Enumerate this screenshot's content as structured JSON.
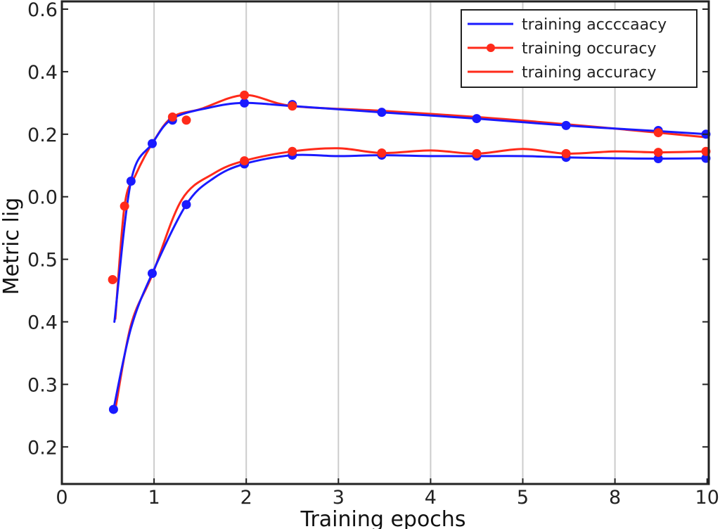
{
  "chart_data": {
    "type": "line",
    "title": "",
    "xlabel": "Training epochs",
    "ylabel": "Metric lig",
    "x_tick_labels": [
      "0",
      "1",
      "2",
      "3",
      "4",
      "5",
      "8",
      "10"
    ],
    "y_tick_labels": [
      "0.6",
      "0.4",
      "0.2",
      "0.0",
      "0.5",
      "0.4",
      "0.3",
      "0.2"
    ],
    "x_scale_note": "x values are positions in tick-index units (0..7)",
    "y_scale_note": "y values are on a linear scale where the ticks top-to-bottom sit at 0.6, 0.4, 0.2, 0.0, -0.2, -0.4, -0.6, -0.8",
    "xlim": [
      0,
      7
    ],
    "ylim": [
      -0.95,
      0.63
    ],
    "grid": {
      "vertical": true,
      "horizontal": false
    },
    "legend_position": "upper right",
    "legend": [
      {
        "label": "training accccaacy",
        "color": "#1a1aff",
        "marker": false
      },
      {
        "label": "training occuracy",
        "color": "#ff2a1a",
        "marker": true
      },
      {
        "label": "training accuracy",
        "color": "#ff2a1a",
        "marker": false
      }
    ],
    "series": [
      {
        "name": "upper-blue",
        "color": "#1a1aff",
        "points": [
          [
            0.57,
            -0.4
          ],
          [
            0.75,
            0.05
          ],
          [
            0.98,
            0.17
          ],
          [
            1.2,
            0.25
          ],
          [
            1.6,
            0.285
          ],
          [
            1.98,
            0.3
          ],
          [
            2.5,
            0.29
          ],
          [
            3.47,
            0.27
          ],
          [
            4.5,
            0.25
          ],
          [
            5.47,
            0.228
          ],
          [
            6.47,
            0.21
          ],
          [
            7.0,
            0.2
          ]
        ],
        "markers": [
          [
            0.75,
            0.05
          ],
          [
            0.98,
            0.17
          ],
          [
            1.2,
            0.245
          ],
          [
            1.98,
            0.3
          ],
          [
            2.5,
            0.295
          ],
          [
            3.47,
            0.27
          ],
          [
            4.5,
            0.25
          ],
          [
            5.47,
            0.228
          ],
          [
            6.47,
            0.212
          ],
          [
            7.0,
            0.2
          ]
        ]
      },
      {
        "name": "upper-red",
        "color": "#ff2a1a",
        "points": [
          [
            0.58,
            -0.39
          ],
          [
            0.68,
            -0.03
          ],
          [
            0.8,
            0.07
          ],
          [
            1.0,
            0.18
          ],
          [
            1.2,
            0.255
          ],
          [
            1.5,
            0.28
          ],
          [
            1.98,
            0.325
          ],
          [
            2.5,
            0.29
          ],
          [
            3.47,
            0.275
          ],
          [
            4.5,
            0.255
          ],
          [
            5.47,
            0.232
          ],
          [
            6.47,
            0.205
          ],
          [
            7.0,
            0.19
          ]
        ],
        "markers": [
          [
            0.55,
            -0.265
          ],
          [
            0.68,
            -0.03
          ],
          [
            1.2,
            0.255
          ],
          [
            1.35,
            0.245
          ],
          [
            1.98,
            0.325
          ],
          [
            2.5,
            0.29
          ],
          [
            6.47,
            0.205
          ]
        ]
      },
      {
        "name": "lower-blue",
        "color": "#1a1aff",
        "points": [
          [
            0.56,
            -0.68
          ],
          [
            0.75,
            -0.42
          ],
          [
            0.98,
            -0.245
          ],
          [
            1.35,
            -0.025
          ],
          [
            1.65,
            0.06
          ],
          [
            1.98,
            0.105
          ],
          [
            2.5,
            0.133
          ],
          [
            3.0,
            0.13
          ],
          [
            3.47,
            0.133
          ],
          [
            4.0,
            0.13
          ],
          [
            4.5,
            0.13
          ],
          [
            5.0,
            0.13
          ],
          [
            5.47,
            0.126
          ],
          [
            6.0,
            0.123
          ],
          [
            6.47,
            0.122
          ],
          [
            7.0,
            0.123
          ]
        ],
        "markers": [
          [
            0.56,
            -0.68
          ],
          [
            0.98,
            -0.245
          ],
          [
            1.35,
            -0.025
          ],
          [
            1.98,
            0.105
          ],
          [
            2.5,
            0.133
          ],
          [
            3.47,
            0.133
          ],
          [
            4.5,
            0.13
          ],
          [
            5.47,
            0.126
          ],
          [
            6.47,
            0.122
          ],
          [
            7.0,
            0.123
          ]
        ]
      },
      {
        "name": "lower-red",
        "color": "#ff2a1a",
        "points": [
          [
            0.58,
            -0.68
          ],
          [
            0.75,
            -0.41
          ],
          [
            0.98,
            -0.25
          ],
          [
            1.3,
            -0.01
          ],
          [
            1.65,
            0.075
          ],
          [
            1.98,
            0.115
          ],
          [
            2.5,
            0.145
          ],
          [
            3.0,
            0.155
          ],
          [
            3.47,
            0.14
          ],
          [
            4.0,
            0.148
          ],
          [
            4.5,
            0.138
          ],
          [
            5.0,
            0.153
          ],
          [
            5.47,
            0.138
          ],
          [
            6.0,
            0.145
          ],
          [
            6.47,
            0.142
          ],
          [
            7.0,
            0.145
          ]
        ],
        "markers": [
          [
            1.98,
            0.115
          ],
          [
            2.5,
            0.145
          ],
          [
            3.47,
            0.14
          ],
          [
            4.5,
            0.138
          ],
          [
            5.47,
            0.138
          ],
          [
            6.47,
            0.142
          ],
          [
            7.0,
            0.145
          ]
        ]
      }
    ]
  }
}
